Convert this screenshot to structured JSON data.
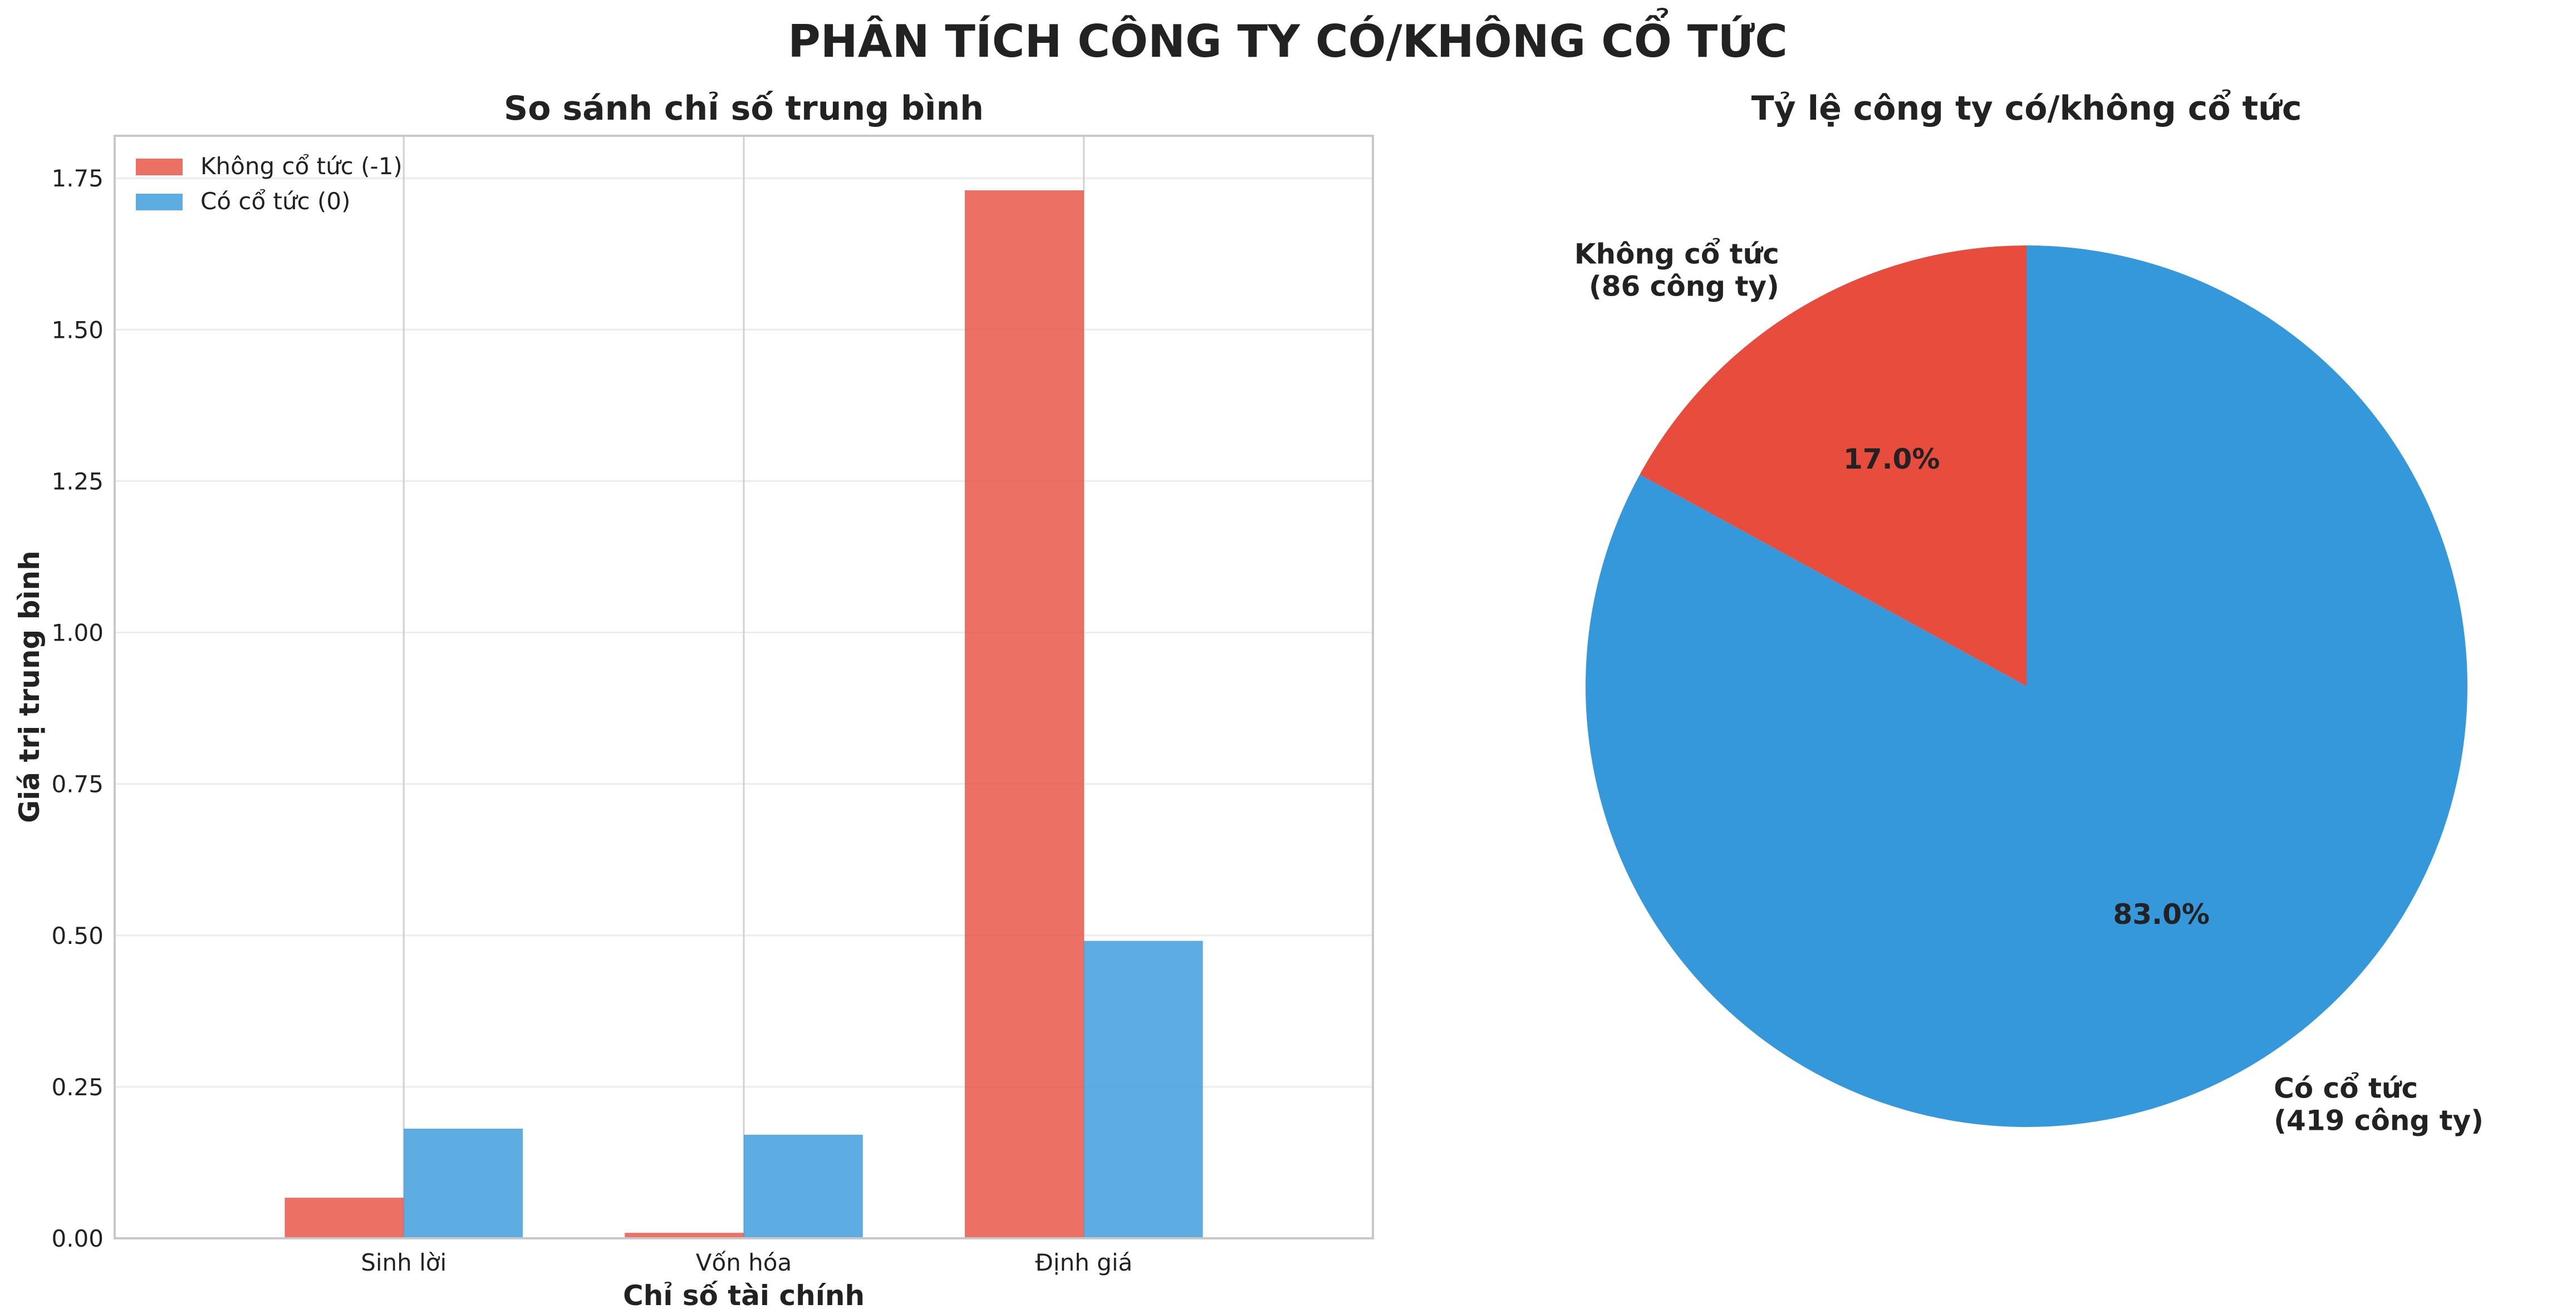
{
  "figure": {
    "suptitle": "PHÂN TÍCH CÔNG TY CÓ/KHÔNG CỔ TỨC"
  },
  "chart_data": [
    {
      "type": "bar",
      "title": "So sánh chỉ số trung bình",
      "xlabel": "Chỉ số tài chính",
      "ylabel": "Giá trị trung bình",
      "categories": [
        "Sinh lời",
        "Vốn hóa",
        "Định giá"
      ],
      "series": [
        {
          "name": "Không cổ tức (-1)",
          "color": "#e74c3c",
          "values": [
            0.067,
            0.009,
            1.73
          ]
        },
        {
          "name": "Có cổ tức (0)",
          "color": "#3498db",
          "values": [
            0.181,
            0.171,
            0.491
          ]
        }
      ],
      "ylim": [
        0,
        1.82
      ],
      "yticks": [
        0.0,
        0.25,
        0.5,
        0.75,
        1.0,
        1.25,
        1.5,
        1.75
      ],
      "ytick_labels": [
        "0.00",
        "0.25",
        "0.50",
        "0.75",
        "1.00",
        "1.25",
        "1.50",
        "1.75"
      ],
      "grid": true,
      "legend_position": "top-left"
    },
    {
      "type": "pie",
      "title": "Tỷ lệ công ty có/không cổ tức",
      "slices": [
        {
          "label_line1": "Không cổ tức",
          "label_line2": "(86 công ty)",
          "value": 86,
          "pct_label": "17.0%",
          "color": "#e74c3c"
        },
        {
          "label_line1": "Có cổ tức",
          "label_line2": "(419 công ty)",
          "value": 419,
          "pct_label": "83.0%",
          "color": "#3498db"
        }
      ]
    }
  ]
}
